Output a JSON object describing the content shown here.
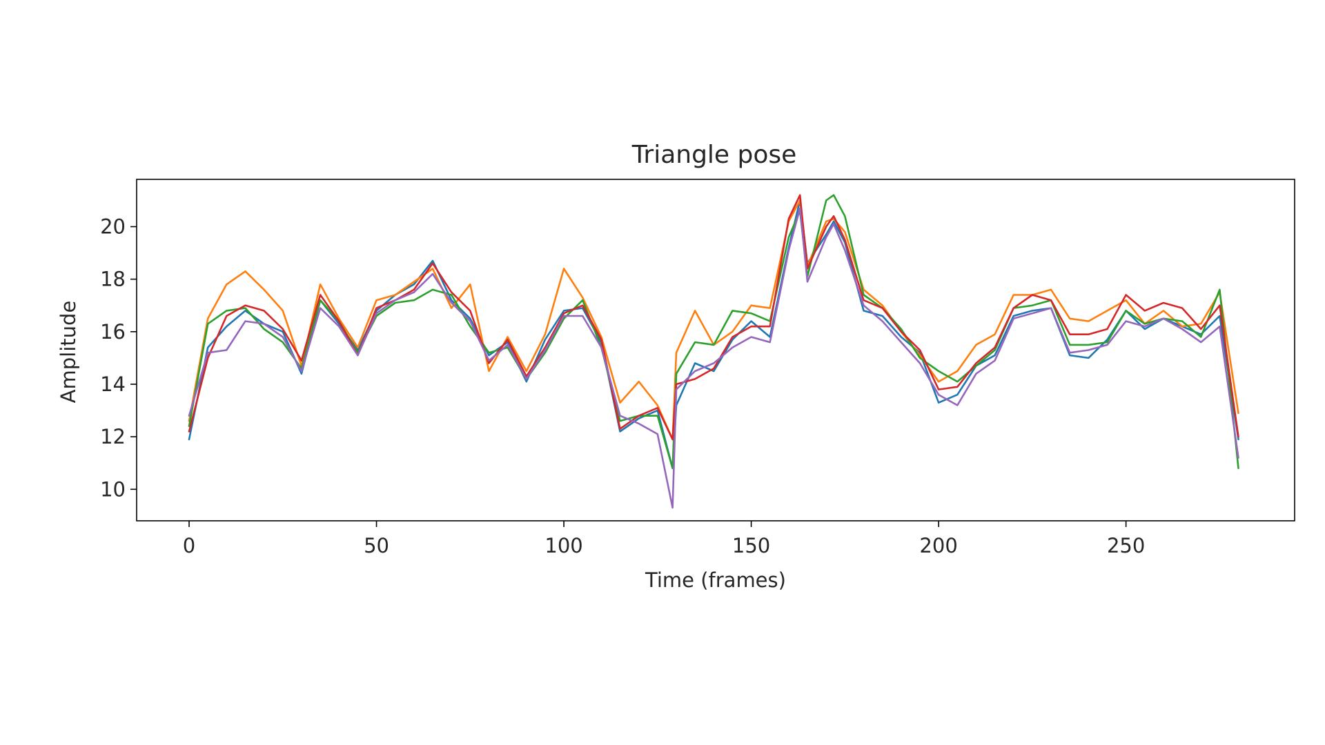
{
  "chart_data": {
    "type": "line",
    "title": "Triangle pose",
    "xlabel": "Time (frames)",
    "ylabel": "Amplitude",
    "xlim": [
      -14,
      295
    ],
    "ylim": [
      8.8,
      21.8
    ],
    "x_ticks": [
      0,
      50,
      100,
      150,
      200,
      250
    ],
    "y_ticks": [
      10,
      12,
      14,
      16,
      18,
      20
    ],
    "grid": false,
    "legend": "none",
    "colors": [
      "#1f77b4",
      "#ff7f0e",
      "#2ca02c",
      "#d62728",
      "#9467bd"
    ],
    "x": [
      0,
      5,
      10,
      15,
      20,
      25,
      30,
      35,
      40,
      45,
      50,
      55,
      60,
      65,
      70,
      75,
      80,
      85,
      90,
      95,
      100,
      105,
      110,
      115,
      120,
      125,
      129,
      130,
      135,
      140,
      145,
      150,
      155,
      160,
      163,
      165,
      170,
      172,
      175,
      180,
      185,
      190,
      195,
      200,
      205,
      210,
      215,
      220,
      225,
      230,
      235,
      240,
      245,
      250,
      255,
      260,
      265,
      270,
      275,
      280
    ],
    "series": [
      {
        "values": [
          11.9,
          15.4,
          16.2,
          16.8,
          16.3,
          16.0,
          14.4,
          17.2,
          16.3,
          15.3,
          16.8,
          17.4,
          17.8,
          18.7,
          17.2,
          16.5,
          15.1,
          15.6,
          14.1,
          15.7,
          16.8,
          16.9,
          15.6,
          12.2,
          12.7,
          13.0,
          10.8,
          13.2,
          14.8,
          14.5,
          15.7,
          16.4,
          15.8,
          19.2,
          21.0,
          18.6,
          19.7,
          20.2,
          19.4,
          16.8,
          16.6,
          15.8,
          15.2,
          13.3,
          13.6,
          14.7,
          15.1,
          16.6,
          16.8,
          16.9,
          15.1,
          15.0,
          15.7,
          16.8,
          16.1,
          16.5,
          16.2,
          15.9,
          16.6,
          11.9
        ]
      },
      {
        "values": [
          12.6,
          16.5,
          17.8,
          18.3,
          17.6,
          16.8,
          14.7,
          17.8,
          16.5,
          15.4,
          17.2,
          17.4,
          17.9,
          18.4,
          16.9,
          17.8,
          14.5,
          15.8,
          14.5,
          15.9,
          18.4,
          17.3,
          15.8,
          13.3,
          14.1,
          13.2,
          11.9,
          15.2,
          16.8,
          15.5,
          16.0,
          17.0,
          16.9,
          20.2,
          21.0,
          18.5,
          20.2,
          20.3,
          19.8,
          17.6,
          17.0,
          16.0,
          15.1,
          14.1,
          14.5,
          15.5,
          15.9,
          17.4,
          17.4,
          17.6,
          16.5,
          16.4,
          16.8,
          17.2,
          16.3,
          16.8,
          16.2,
          16.3,
          17.5,
          12.9
        ]
      },
      {
        "values": [
          12.4,
          16.3,
          16.8,
          16.9,
          16.1,
          15.6,
          14.6,
          17.2,
          16.4,
          15.2,
          16.6,
          17.1,
          17.2,
          17.6,
          17.4,
          16.2,
          15.2,
          15.4,
          14.2,
          15.2,
          16.5,
          17.2,
          15.4,
          12.6,
          12.8,
          12.8,
          10.8,
          14.4,
          15.6,
          15.5,
          16.8,
          16.7,
          16.4,
          19.6,
          20.6,
          18.1,
          21.0,
          21.2,
          20.4,
          17.4,
          16.9,
          16.1,
          15.0,
          14.5,
          14.1,
          14.7,
          15.3,
          16.9,
          17.0,
          17.2,
          15.5,
          15.5,
          15.6,
          16.8,
          16.3,
          16.5,
          16.4,
          15.8,
          17.6,
          10.8
        ]
      },
      {
        "values": [
          12.2,
          15.0,
          16.6,
          17.0,
          16.8,
          16.1,
          14.9,
          17.4,
          16.4,
          15.1,
          16.9,
          17.2,
          17.6,
          18.6,
          17.5,
          16.8,
          14.8,
          15.7,
          14.3,
          15.4,
          16.7,
          17.0,
          15.7,
          12.3,
          12.8,
          13.1,
          11.9,
          14.0,
          14.2,
          14.6,
          15.8,
          16.2,
          16.2,
          20.3,
          21.2,
          18.4,
          20.0,
          20.4,
          19.5,
          17.2,
          16.9,
          16.0,
          15.3,
          13.8,
          13.9,
          14.8,
          15.4,
          16.9,
          17.4,
          17.2,
          15.9,
          15.9,
          16.1,
          17.4,
          16.8,
          17.1,
          16.9,
          16.1,
          17.0,
          12.0
        ]
      },
      {
        "values": [
          12.8,
          15.2,
          15.3,
          16.4,
          16.3,
          15.8,
          14.5,
          16.9,
          16.2,
          15.1,
          16.7,
          17.2,
          17.5,
          18.2,
          17.1,
          16.4,
          14.9,
          15.5,
          14.2,
          15.3,
          16.6,
          16.6,
          15.4,
          12.8,
          12.5,
          12.1,
          9.3,
          13.8,
          14.5,
          14.8,
          15.4,
          15.8,
          15.6,
          19.1,
          20.7,
          17.9,
          19.6,
          20.1,
          19.1,
          17.0,
          16.4,
          15.6,
          14.8,
          13.6,
          13.2,
          14.4,
          14.9,
          16.5,
          16.7,
          16.9,
          15.2,
          15.3,
          15.5,
          16.4,
          16.2,
          16.5,
          16.1,
          15.6,
          16.2,
          11.2
        ]
      }
    ]
  }
}
